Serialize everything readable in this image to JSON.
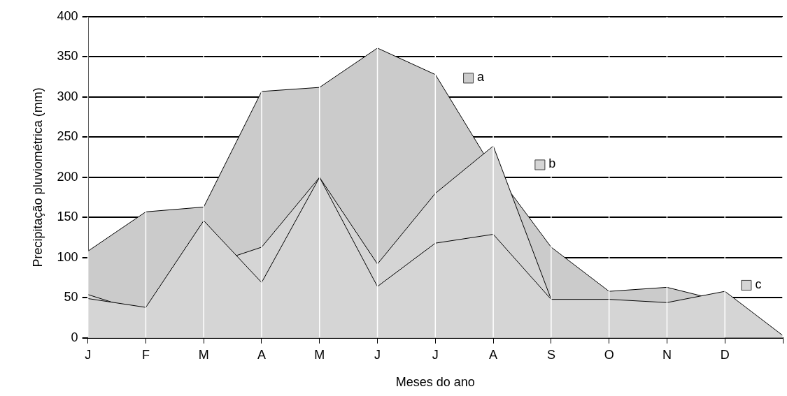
{
  "chart_data": {
    "type": "area",
    "xlabel": "Meses do ano",
    "ylabel": "Precipitação pluviométrica (mm)",
    "categories": [
      "J",
      "F",
      "M",
      "A",
      "M",
      "J",
      "J",
      "A",
      "S",
      "O",
      "N",
      "D",
      null
    ],
    "series": [
      {
        "name": "a",
        "color": "#cbcbcb",
        "values": [
          108,
          157,
          163,
          307,
          312,
          361,
          328,
          210,
          113,
          58,
          63,
          45,
          null
        ]
      },
      {
        "name": "b",
        "color": "#d5d5d5",
        "values": [
          54,
          31,
          89,
          113,
          200,
          92,
          180,
          239,
          48,
          null,
          null,
          null,
          null
        ]
      },
      {
        "name": "c",
        "color": "#d5d5d5",
        "values": [
          49,
          38,
          146,
          69,
          200,
          64,
          118,
          129,
          48,
          48,
          44,
          58,
          3
        ]
      }
    ],
    "ylim": [
      0,
      400
    ],
    "yticks": [
      0,
      50,
      100,
      150,
      200,
      250,
      300,
      350,
      400
    ],
    "grid": true,
    "marker": "none",
    "legend": "right"
  }
}
